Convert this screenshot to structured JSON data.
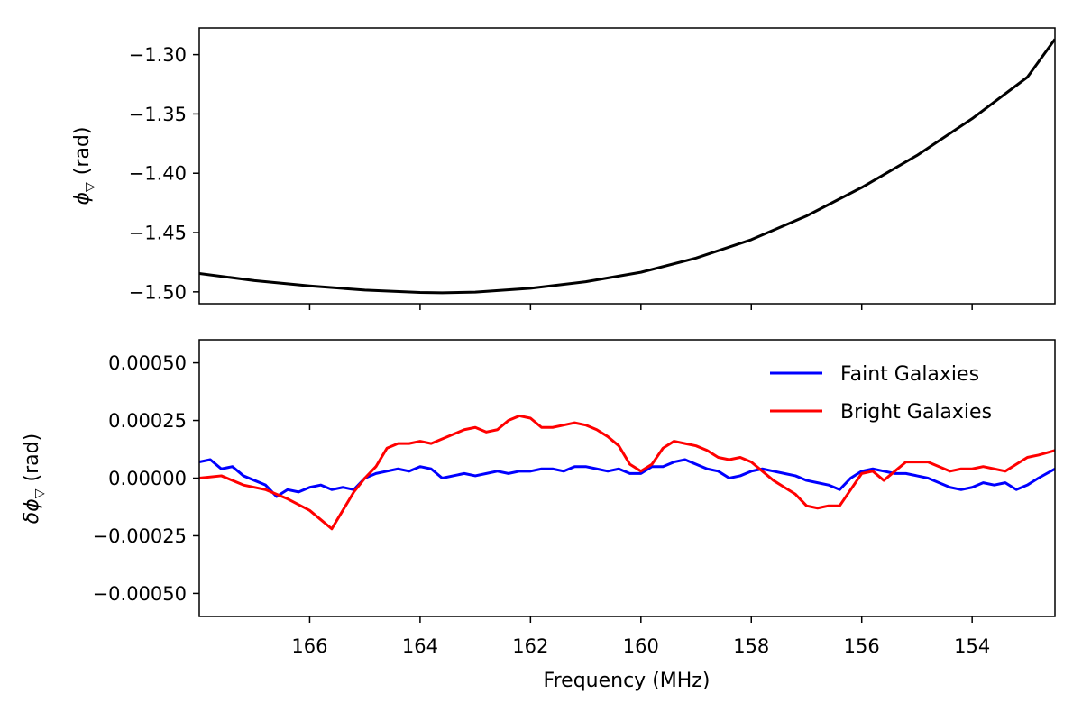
{
  "chart_data": [
    {
      "type": "line",
      "panel": "top",
      "ylabel_symbol": "ϕ",
      "ylabel_subscript": "▽",
      "ylabel_unit": "(rad)",
      "xlim": [
        168.0,
        152.5
      ],
      "ylim": [
        -1.51,
        -1.2775
      ],
      "y_ticks": [
        -1.3,
        -1.35,
        -1.4,
        -1.45,
        -1.5
      ],
      "y_tick_labels": [
        "−1.30",
        "−1.35",
        "−1.40",
        "−1.45",
        "−1.50"
      ],
      "x_ticks": [
        166,
        164,
        162,
        160,
        158,
        156,
        154
      ],
      "series": [
        {
          "color": "#000000",
          "x": [
            168.0,
            167.0,
            166.0,
            165.0,
            164.0,
            163.6,
            163.0,
            162.0,
            161.0,
            160.0,
            159.0,
            158.0,
            157.0,
            156.0,
            155.0,
            154.0,
            153.0,
            152.5
          ],
          "y": [
            -1.4845,
            -1.4905,
            -1.495,
            -1.4985,
            -1.5005,
            -1.5008,
            -1.5002,
            -1.497,
            -1.4915,
            -1.4835,
            -1.4715,
            -1.456,
            -1.436,
            -1.412,
            -1.385,
            -1.354,
            -1.319,
            -1.287
          ]
        }
      ]
    },
    {
      "type": "line",
      "panel": "bottom",
      "xlabel": "Frequency (MHz)",
      "ylabel_symbol": "δϕ",
      "ylabel_subscript": "▽",
      "ylabel_unit": "(rad)",
      "xlim": [
        168.0,
        152.5
      ],
      "ylim": [
        -0.0006,
        0.0006
      ],
      "y_ticks": [
        0.0005,
        0.00025,
        0.0,
        -0.00025,
        -0.0005
      ],
      "y_tick_labels": [
        "0.00050",
        "0.00025",
        "0.00000",
        "−0.00025",
        "−0.00050"
      ],
      "x_ticks": [
        166,
        164,
        162,
        160,
        158,
        156,
        154
      ],
      "x_tick_labels": [
        "166",
        "164",
        "162",
        "160",
        "158",
        "156",
        "154"
      ],
      "legend": "top-right",
      "series": [
        {
          "name": "Faint Galaxies",
          "color": "#0000ff",
          "x": [
            168.0,
            167.8,
            167.6,
            167.4,
            167.2,
            167.0,
            166.8,
            166.6,
            166.4,
            166.2,
            166.0,
            165.8,
            165.6,
            165.4,
            165.2,
            165.0,
            164.8,
            164.6,
            164.4,
            164.2,
            164.0,
            163.8,
            163.6,
            163.4,
            163.2,
            163.0,
            162.8,
            162.6,
            162.4,
            162.2,
            162.0,
            161.8,
            161.6,
            161.4,
            161.2,
            161.0,
            160.8,
            160.6,
            160.4,
            160.2,
            160.0,
            159.8,
            159.6,
            159.4,
            159.2,
            159.0,
            158.8,
            158.6,
            158.4,
            158.2,
            158.0,
            157.8,
            157.6,
            157.4,
            157.2,
            157.0,
            156.8,
            156.6,
            156.4,
            156.2,
            156.0,
            155.8,
            155.6,
            155.4,
            155.2,
            155.0,
            154.8,
            154.6,
            154.4,
            154.2,
            154.0,
            153.8,
            153.6,
            153.4,
            153.2,
            153.0,
            152.8,
            152.5
          ],
          "y": [
            7e-05,
            8e-05,
            4e-05,
            5e-05,
            1e-05,
            -1e-05,
            -3e-05,
            -8e-05,
            -5e-05,
            -6e-05,
            -4e-05,
            -3e-05,
            -5e-05,
            -4e-05,
            -5e-05,
            0.0,
            2e-05,
            3e-05,
            4e-05,
            3e-05,
            5e-05,
            4e-05,
            0.0,
            1e-05,
            2e-05,
            1e-05,
            2e-05,
            3e-05,
            2e-05,
            3e-05,
            3e-05,
            4e-05,
            4e-05,
            3e-05,
            5e-05,
            5e-05,
            4e-05,
            3e-05,
            4e-05,
            2e-05,
            2e-05,
            5e-05,
            5e-05,
            7e-05,
            8e-05,
            6e-05,
            4e-05,
            3e-05,
            0.0,
            1e-05,
            3e-05,
            4e-05,
            3e-05,
            2e-05,
            1e-05,
            -1e-05,
            -2e-05,
            -3e-05,
            -5e-05,
            0.0,
            3e-05,
            4e-05,
            3e-05,
            2e-05,
            2e-05,
            1e-05,
            0.0,
            -2e-05,
            -4e-05,
            -5e-05,
            -4e-05,
            -2e-05,
            -3e-05,
            -2e-05,
            -5e-05,
            -3e-05,
            0.0,
            4e-05
          ]
        },
        {
          "name": "Bright Galaxies",
          "color": "#ff0000",
          "x": [
            168.0,
            167.6,
            167.2,
            166.8,
            166.4,
            166.0,
            165.8,
            165.6,
            165.4,
            165.2,
            165.0,
            164.8,
            164.6,
            164.4,
            164.2,
            164.0,
            163.8,
            163.6,
            163.4,
            163.2,
            163.0,
            162.8,
            162.6,
            162.4,
            162.2,
            162.0,
            161.8,
            161.6,
            161.4,
            161.2,
            161.0,
            160.8,
            160.6,
            160.4,
            160.2,
            160.0,
            159.8,
            159.6,
            159.4,
            159.2,
            159.0,
            158.8,
            158.6,
            158.4,
            158.2,
            158.0,
            157.8,
            157.6,
            157.4,
            157.2,
            157.0,
            156.8,
            156.6,
            156.4,
            156.2,
            156.0,
            155.8,
            155.6,
            155.4,
            155.2,
            155.0,
            154.8,
            154.6,
            154.4,
            154.2,
            154.0,
            153.8,
            153.6,
            153.4,
            153.2,
            153.0,
            152.8,
            152.5
          ],
          "y": [
            0.0,
            1e-05,
            -3e-05,
            -5e-05,
            -9e-05,
            -0.00014,
            -0.00018,
            -0.00022,
            -0.00014,
            -6e-05,
            0.0,
            5e-05,
            0.00013,
            0.00015,
            0.00015,
            0.00016,
            0.00015,
            0.00017,
            0.00019,
            0.00021,
            0.00022,
            0.0002,
            0.00021,
            0.00025,
            0.00027,
            0.00026,
            0.00022,
            0.00022,
            0.00023,
            0.00024,
            0.00023,
            0.00021,
            0.00018,
            0.00014,
            6e-05,
            3e-05,
            6e-05,
            0.00013,
            0.00016,
            0.00015,
            0.00014,
            0.00012,
            9e-05,
            8e-05,
            9e-05,
            7e-05,
            3e-05,
            -1e-05,
            -4e-05,
            -7e-05,
            -0.00012,
            -0.00013,
            -0.00012,
            -0.00012,
            -5e-05,
            2e-05,
            3e-05,
            -1e-05,
            3e-05,
            7e-05,
            7e-05,
            7e-05,
            5e-05,
            3e-05,
            4e-05,
            4e-05,
            5e-05,
            4e-05,
            3e-05,
            6e-05,
            9e-05,
            0.0001,
            0.00012
          ]
        }
      ]
    }
  ]
}
